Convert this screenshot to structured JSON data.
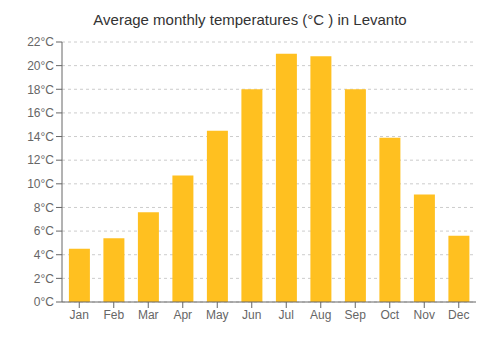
{
  "chart_data": {
    "type": "bar",
    "title": "Average monthly temperatures (°C ) in Levanto",
    "categories": [
      "Jan",
      "Feb",
      "Mar",
      "Apr",
      "May",
      "Jun",
      "Jul",
      "Aug",
      "Sep",
      "Oct",
      "Nov",
      "Dec"
    ],
    "values": [
      4.5,
      5.4,
      7.6,
      10.7,
      14.5,
      18.0,
      21.0,
      20.8,
      18.0,
      13.9,
      9.1,
      5.6
    ],
    "color": "#FFC020",
    "ylim": [
      0,
      22
    ],
    "yticks": [
      {
        "value": 0,
        "label": "0°C"
      },
      {
        "value": 2,
        "label": "2°C"
      },
      {
        "value": 4,
        "label": "4°C"
      },
      {
        "value": 6,
        "label": "6°C"
      },
      {
        "value": 8,
        "label": "8°C"
      },
      {
        "value": 10,
        "label": "10°C"
      },
      {
        "value": 12,
        "label": "12°C"
      },
      {
        "value": 14,
        "label": "14°C"
      },
      {
        "value": 16,
        "label": "16°C"
      },
      {
        "value": 18,
        "label": "18°C"
      },
      {
        "value": 20,
        "label": "20°C"
      },
      {
        "value": 22,
        "label": "22°C"
      }
    ],
    "grid": true
  }
}
